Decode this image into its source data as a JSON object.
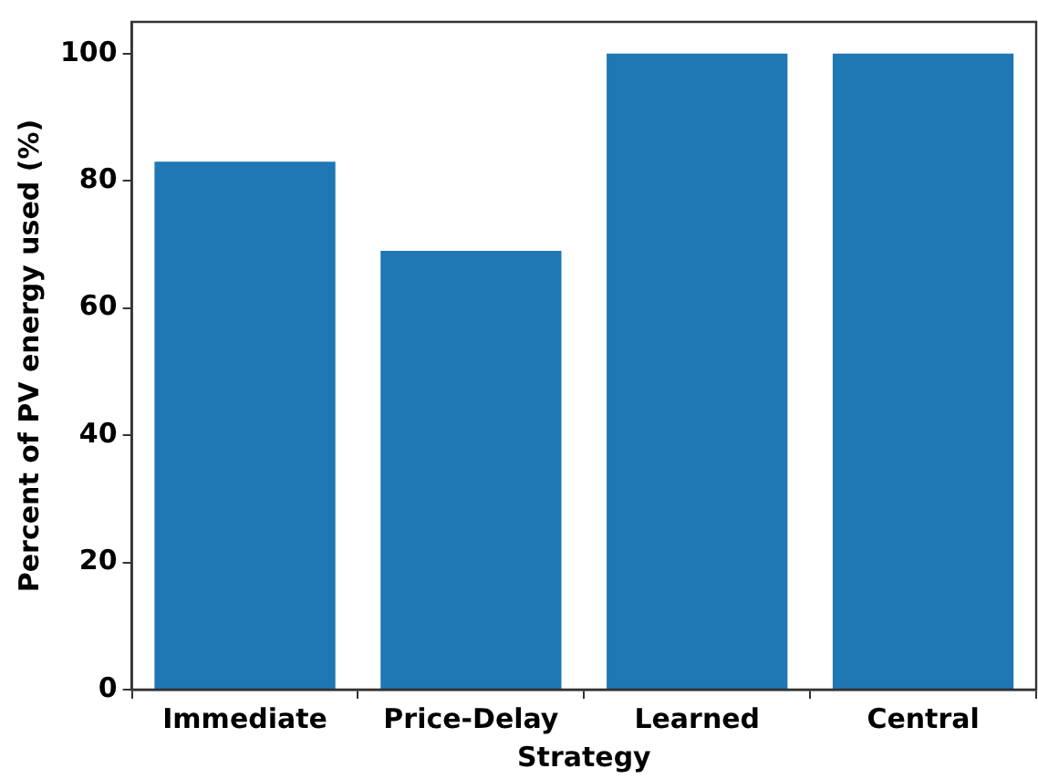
{
  "chart_data": {
    "type": "bar",
    "xlabel": "Strategy",
    "ylabel": "Percent of PV energy used (%)",
    "categories": [
      "Immediate",
      "Price-Delay",
      "Learned",
      "Central"
    ],
    "values": [
      83,
      69,
      100,
      100
    ],
    "color": "#1f77b4",
    "ylim": [
      0,
      105
    ],
    "yticks": [
      0,
      20,
      40,
      60,
      80,
      100
    ],
    "grid": false,
    "legend": false
  }
}
